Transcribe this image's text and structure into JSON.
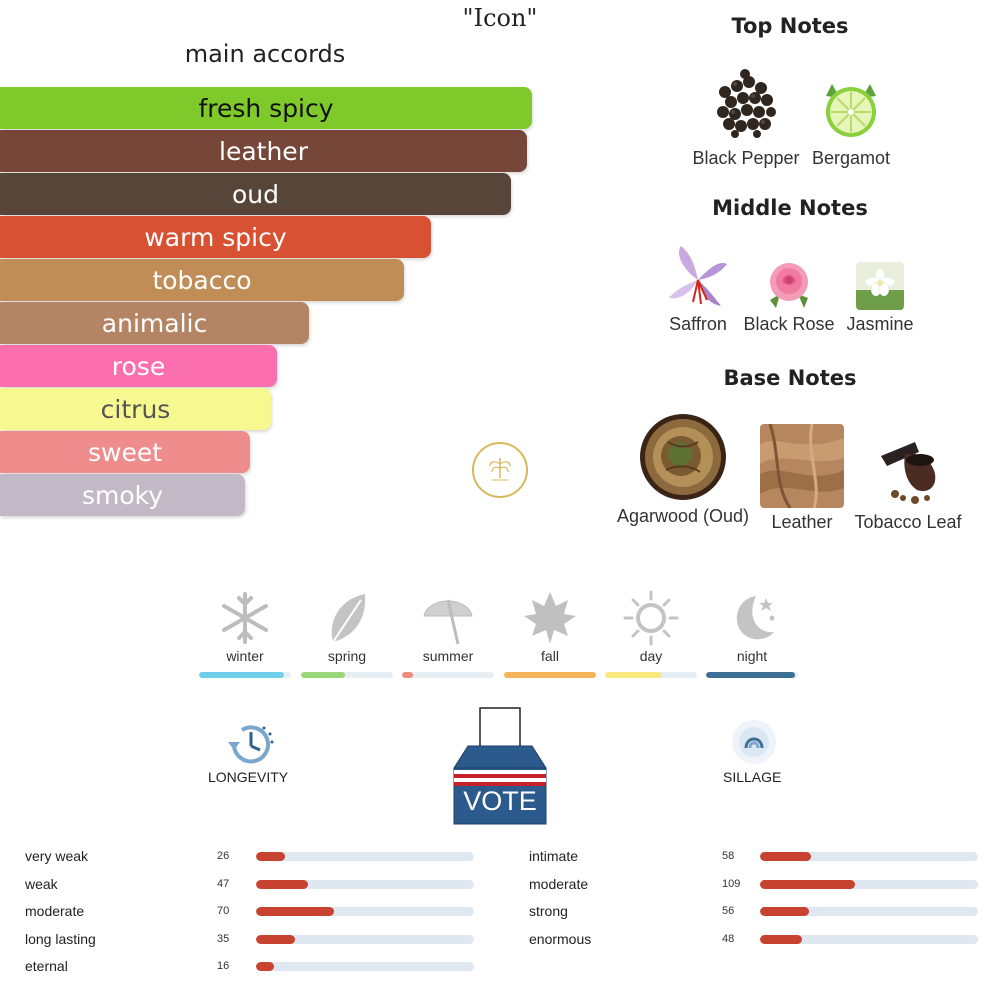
{
  "title": "\"Icon\"",
  "main_accords": {
    "title": "main accords",
    "items": [
      {
        "label": "fresh spicy",
        "bg": "#7fc92b",
        "fg": "#111111",
        "strength": 100
      },
      {
        "label": "leather",
        "bg": "#764638",
        "fg": "#ffffff",
        "strength": 99
      },
      {
        "label": "oud",
        "bg": "#58453a",
        "fg": "#ffffff",
        "strength": 96
      },
      {
        "label": "warm spicy",
        "bg": "#d95133",
        "fg": "#ffffff",
        "strength": 81
      },
      {
        "label": "tobacco",
        "bg": "#bf8d55",
        "fg": "#ffffff",
        "strength": 76
      },
      {
        "label": "animalic",
        "bg": "#b48565",
        "fg": "#ffffff",
        "strength": 58
      },
      {
        "label": "rose",
        "bg": "#fb6fae",
        "fg": "#ffffff",
        "strength": 52
      },
      {
        "label": "citrus",
        "bg": "#f8f891",
        "fg": "#555555",
        "strength": 51
      },
      {
        "label": "sweet",
        "bg": "#ef8d8d",
        "fg": "#ffffff",
        "strength": 47
      },
      {
        "label": "smoky",
        "bg": "#c3b9c6",
        "fg": "#ffffff",
        "strength": 46
      }
    ]
  },
  "top_notes": {
    "title": "Top Notes",
    "items": [
      {
        "label": "Black Pepper",
        "icon": "black-pepper-image"
      },
      {
        "label": "Bergamot",
        "icon": "bergamot-image"
      }
    ]
  },
  "middle_notes": {
    "title": "Middle Notes",
    "items": [
      {
        "label": "Saffron",
        "icon": "saffron-image"
      },
      {
        "label": "Black Rose",
        "icon": "rose-image"
      },
      {
        "label": "Jasmine",
        "icon": "jasmine-image"
      }
    ]
  },
  "base_notes": {
    "title": "Base Notes",
    "items": [
      {
        "label": "Agarwood (Oud)",
        "icon": "agarwood-image"
      },
      {
        "label": "Leather",
        "icon": "leather-image"
      },
      {
        "label": "Tobacco Leaf",
        "icon": "tobacco-leaf-image"
      }
    ]
  },
  "seasons": [
    {
      "label": "winter",
      "icon": "snowflake-icon",
      "color": "#6fcfea",
      "level": 0.92
    },
    {
      "label": "spring",
      "icon": "leaf-icon",
      "color": "#9ad67a",
      "level": 0.48
    },
    {
      "label": "summer",
      "icon": "umbrella-icon",
      "color": "#f08b80",
      "level": 0.12
    },
    {
      "label": "fall",
      "icon": "maple-leaf-icon",
      "color": "#f6b35c",
      "level": 1.0
    },
    {
      "label": "day",
      "icon": "sun-icon",
      "color": "#f8ea7e",
      "level": 0.62
    },
    {
      "label": "night",
      "icon": "moon-stars-icon",
      "color": "#3d6f97",
      "level": 0.97
    }
  ],
  "longevity": {
    "title": "LONGEVITY",
    "icon": "clock-icon",
    "rows": [
      {
        "label": "very weak",
        "count": 26
      },
      {
        "label": "weak",
        "count": 47
      },
      {
        "label": "moderate",
        "count": 70
      },
      {
        "label": "long lasting",
        "count": 35
      },
      {
        "label": "eternal",
        "count": 16
      }
    ]
  },
  "sillage": {
    "title": "SILLAGE",
    "icon": "sillage-icon",
    "rows": [
      {
        "label": "intimate",
        "count": 58
      },
      {
        "label": "moderate",
        "count": 109
      },
      {
        "label": "strong",
        "count": 56
      },
      {
        "label": "enormous",
        "count": 48
      }
    ]
  },
  "vote": {
    "label": "VOTE"
  }
}
